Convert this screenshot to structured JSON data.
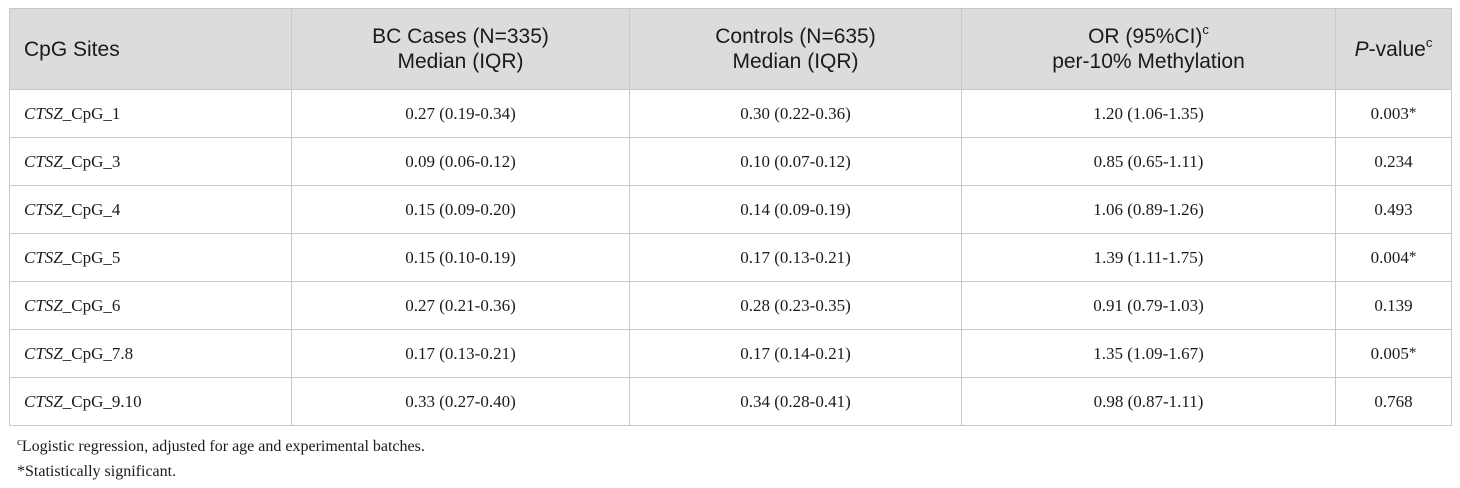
{
  "table": {
    "headers": {
      "site": "CpG Sites",
      "cases_line1": "BC Cases (N=335)",
      "cases_line2": "Median (IQR)",
      "controls_line1": "Controls (N=635)",
      "controls_line2": "Median (IQR)",
      "or_line1": "OR (95%CI)",
      "or_sup": "c",
      "or_line2": "per-10% Methylation",
      "p_italic": "P",
      "p_rest": "-value",
      "p_sup": "c"
    },
    "rows": [
      {
        "gene": "CTSZ",
        "site": "_CpG_1",
        "cases": "0.27 (0.19-0.34)",
        "controls": "0.30 (0.22-0.36)",
        "or": "1.20 (1.06-1.35)",
        "p": "0.003",
        "star": "*"
      },
      {
        "gene": "CTSZ",
        "site": "_CpG_3",
        "cases": "0.09 (0.06-0.12)",
        "controls": "0.10 (0.07-0.12)",
        "or": "0.85 (0.65-1.11)",
        "p": "0.234",
        "star": ""
      },
      {
        "gene": "CTSZ",
        "site": "_CpG_4",
        "cases": "0.15 (0.09-0.20)",
        "controls": "0.14 (0.09-0.19)",
        "or": "1.06 (0.89-1.26)",
        "p": "0.493",
        "star": ""
      },
      {
        "gene": "CTSZ",
        "site": "_CpG_5",
        "cases": "0.15 (0.10-0.19)",
        "controls": "0.17 (0.13-0.21)",
        "or": "1.39 (1.11-1.75)",
        "p": "0.004",
        "star": "*"
      },
      {
        "gene": "CTSZ",
        "site": "_CpG_6",
        "cases": "0.27 (0.21-0.36)",
        "controls": "0.28 (0.23-0.35)",
        "or": "0.91 (0.79-1.03)",
        "p": "0.139",
        "star": ""
      },
      {
        "gene": "CTSZ",
        "site": "_CpG_7.8",
        "cases": "0.17 (0.13-0.21)",
        "controls": "0.17 (0.14-0.21)",
        "or": "1.35 (1.09-1.67)",
        "p": "0.005",
        "star": "*"
      },
      {
        "gene": "CTSZ",
        "site": "_CpG_9.10",
        "cases": "0.33 (0.27-0.40)",
        "controls": "0.34 (0.28-0.41)",
        "or": "0.98 (0.87-1.11)",
        "p": "0.768",
        "star": ""
      }
    ]
  },
  "footnotes": {
    "c_marker": "c",
    "c_text": "Logistic regression, adjusted for age and experimental batches.",
    "star_text": "*Statistically significant."
  }
}
